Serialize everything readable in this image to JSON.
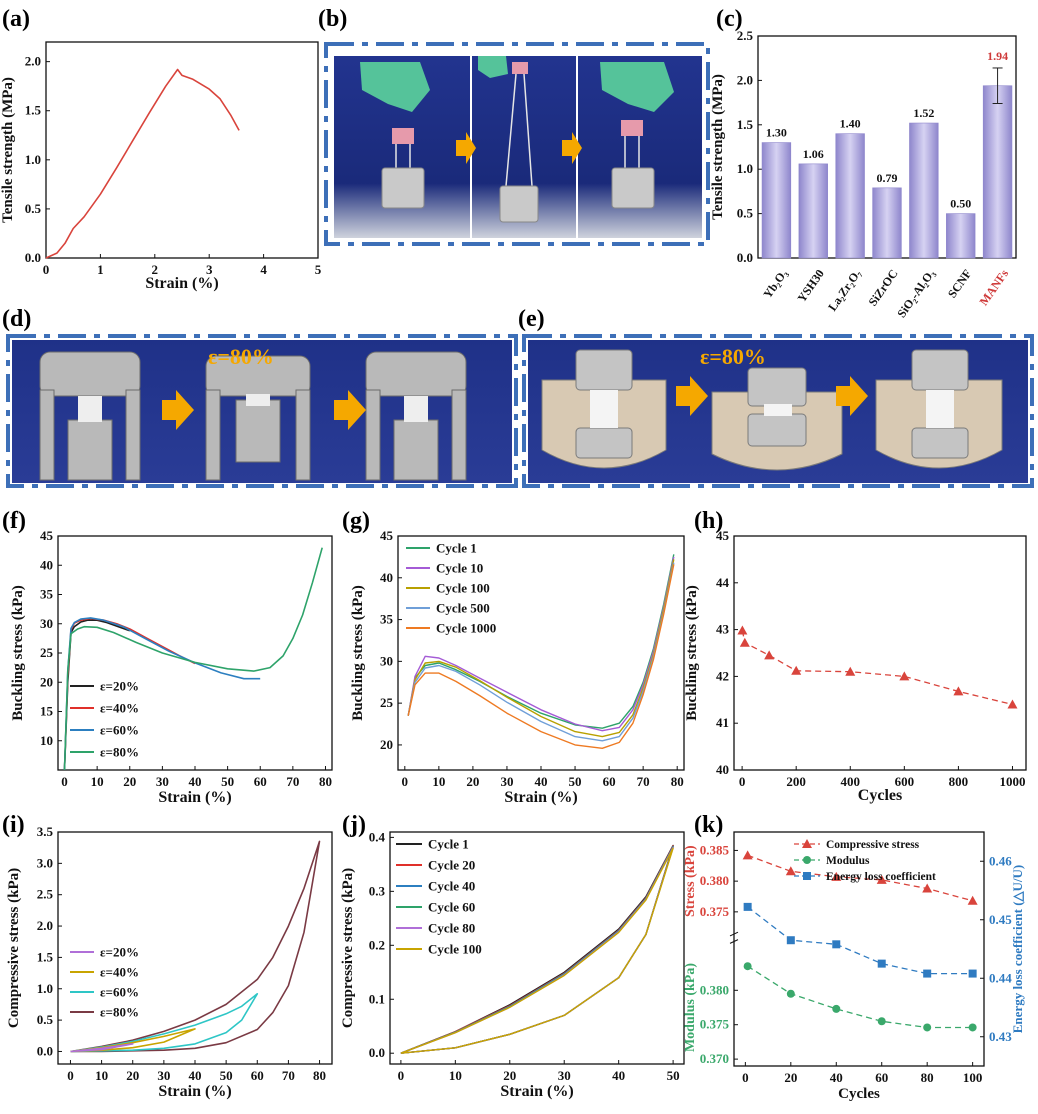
{
  "panel_labels": {
    "a": "(a)",
    "b": "(b)",
    "c": "(c)",
    "d": "(d)",
    "e": "(e)",
    "f": "(f)",
    "g": "(g)",
    "h": "(h)",
    "i": "(i)",
    "j": "(j)",
    "k": "(k)"
  },
  "photo_text": {
    "d_strain": "ε=80%",
    "e_strain": "ε=80%"
  },
  "colors": {
    "frame": "#3d6fb8",
    "arrow": "#f5a800",
    "photo_bg": "#1c2f8a",
    "bar": "#a9a2d8",
    "red": "#d9443c",
    "green": "#3aa86b",
    "blue": "#2f7bc1",
    "accent_red": "#cf3a3a"
  },
  "chart_data": [
    {
      "id": "a",
      "type": "line",
      "xlabel": "Strain (%)",
      "ylabel": "Tensile strength (MPa)",
      "xlim": [
        0,
        5
      ],
      "ylim": [
        0,
        2.2
      ],
      "xticks": [
        0,
        1,
        2,
        3,
        4,
        5
      ],
      "yticks": [
        0.0,
        0.5,
        1.0,
        1.5,
        2.0
      ],
      "ytick_labels": [
        "0.0",
        "0.5",
        "1.0",
        "1.5",
        "2.0"
      ],
      "series": [
        {
          "color": "#d9443c",
          "x": [
            0,
            0.2,
            0.35,
            0.5,
            0.7,
            1.0,
            1.3,
            1.6,
            1.9,
            2.2,
            2.42,
            2.5,
            2.7,
            3.0,
            3.2,
            3.4,
            3.55
          ],
          "y": [
            0,
            0.05,
            0.15,
            0.3,
            0.42,
            0.65,
            0.92,
            1.2,
            1.48,
            1.75,
            1.92,
            1.86,
            1.82,
            1.72,
            1.62,
            1.45,
            1.3
          ]
        }
      ]
    },
    {
      "id": "c",
      "type": "bar",
      "ylabel": "Tensile strength (MPa)",
      "ylim": [
        0,
        2.5
      ],
      "yticks": [
        0.0,
        0.5,
        1.0,
        1.5,
        2.0,
        2.5
      ],
      "ytick_labels": [
        "0.0",
        "0.5",
        "1.0",
        "1.5",
        "2.0",
        "2.5"
      ],
      "categories": [
        "Yb₂O₃",
        "YSH30",
        "La₂Zr₂O₇",
        "SiZrOC",
        "SiO₂-Al₂O₃",
        "SCNF",
        "MANFs"
      ],
      "values": [
        1.3,
        1.06,
        1.4,
        0.79,
        1.52,
        0.5,
        1.94
      ],
      "value_labels": [
        "1.30",
        "1.06",
        "1.40",
        "0.79",
        "1.52",
        "0.50",
        "1.94"
      ],
      "error_bar": {
        "index": 6,
        "err": 0.2
      },
      "highlight_index": 6
    },
    {
      "id": "f",
      "type": "line",
      "xlabel": "Strain (%)",
      "ylabel": "Buckling stress (kPa)",
      "xlim": [
        -2,
        82
      ],
      "ylim": [
        5,
        45
      ],
      "xticks": [
        0,
        10,
        20,
        30,
        40,
        50,
        60,
        70,
        80
      ],
      "yticks": [
        10,
        15,
        20,
        25,
        30,
        35,
        40,
        45
      ],
      "legend_position": "lower-left",
      "series": [
        {
          "name": "ε=20%",
          "color": "#222222",
          "x": [
            0,
            1,
            2,
            3,
            5,
            7,
            10,
            13,
            16,
            19,
            20
          ],
          "y": [
            5,
            20,
            28.5,
            29.5,
            30.3,
            30.6,
            30.6,
            30.2,
            29.6,
            29.0,
            28.8
          ]
        },
        {
          "name": "ε=40%",
          "color": "#e0302a",
          "x": [
            0,
            1,
            2,
            3,
            5,
            8,
            12,
            16,
            20,
            25,
            30,
            35,
            40
          ],
          "y": [
            5,
            21,
            29,
            30.1,
            30.6,
            30.9,
            30.6,
            30.0,
            29.1,
            27.6,
            26.1,
            24.6,
            23.2
          ]
        },
        {
          "name": "ε=60%",
          "color": "#2c7fc0",
          "x": [
            0,
            1,
            2,
            3,
            5,
            8,
            12,
            18,
            25,
            32,
            40,
            48,
            55,
            60
          ],
          "y": [
            5,
            22,
            29.2,
            30.2,
            30.8,
            31.0,
            30.6,
            29.5,
            27.4,
            25.3,
            23.3,
            21.6,
            20.6,
            20.6
          ]
        },
        {
          "name": "ε=80%",
          "color": "#2ea36a",
          "x": [
            0,
            1,
            2,
            4,
            6,
            10,
            15,
            22,
            30,
            40,
            50,
            58,
            63,
            67,
            70,
            73,
            76,
            79
          ],
          "y": [
            5,
            22,
            28.3,
            29.1,
            29.5,
            29.4,
            28.5,
            26.8,
            25.0,
            23.4,
            22.3,
            21.9,
            22.5,
            24.5,
            27.5,
            31.5,
            37,
            43
          ]
        }
      ]
    },
    {
      "id": "g",
      "type": "line",
      "xlabel": "Strain (%)",
      "ylabel": "Buckling stress (kPa)",
      "xlim": [
        -2,
        82
      ],
      "ylim": [
        17,
        45
      ],
      "xticks": [
        0,
        10,
        20,
        30,
        40,
        50,
        60,
        70,
        80
      ],
      "yticks": [
        20,
        25,
        30,
        35,
        40,
        45
      ],
      "legend_position": "top-left",
      "series": [
        {
          "name": "Cycle 1",
          "color": "#2ea36a",
          "x": [
            1,
            3,
            6,
            10,
            15,
            22,
            30,
            40,
            50,
            58,
            63,
            67,
            70,
            73,
            76,
            79
          ],
          "y": [
            23.5,
            28,
            29.5,
            29.8,
            29,
            27.6,
            25.8,
            23.8,
            22.4,
            22,
            22.6,
            24.6,
            27.5,
            31.5,
            36.8,
            42.8
          ]
        },
        {
          "name": "Cycle 10",
          "color": "#a45bd6",
          "x": [
            1,
            3,
            6,
            10,
            15,
            22,
            30,
            40,
            50,
            58,
            63,
            67,
            70,
            73,
            76,
            79
          ],
          "y": [
            23.5,
            28.2,
            30.6,
            30.4,
            29.5,
            28,
            26.3,
            24.2,
            22.5,
            21.7,
            22.1,
            24.2,
            27.2,
            31.2,
            36.5,
            42.5
          ]
        },
        {
          "name": "Cycle 100",
          "color": "#b8a000",
          "x": [
            1,
            3,
            6,
            10,
            15,
            22,
            30,
            40,
            50,
            58,
            63,
            67,
            70,
            73,
            76,
            79
          ],
          "y": [
            23.5,
            27.8,
            29.8,
            30,
            29.3,
            27.7,
            25.7,
            23.4,
            21.6,
            21.0,
            21.5,
            23.6,
            26.8,
            30.8,
            36.2,
            42.2
          ]
        },
        {
          "name": "Cycle 500",
          "color": "#6f9fd8",
          "x": [
            1,
            3,
            6,
            10,
            15,
            22,
            30,
            40,
            50,
            58,
            63,
            67,
            70,
            73,
            76,
            79
          ],
          "y": [
            23.5,
            27.5,
            29.2,
            29.5,
            28.8,
            27.2,
            25.1,
            22.8,
            21.0,
            20.5,
            21.0,
            23.2,
            26.4,
            30.5,
            35.8,
            41.8
          ]
        },
        {
          "name": "Cycle 1000",
          "color": "#ee7a22",
          "x": [
            1,
            3,
            6,
            10,
            15,
            22,
            30,
            40,
            50,
            58,
            63,
            67,
            70,
            73,
            76,
            79
          ],
          "y": [
            23.5,
            27.2,
            28.6,
            28.6,
            27.6,
            25.9,
            23.8,
            21.6,
            20.0,
            19.6,
            20.3,
            22.6,
            26.0,
            30.2,
            35.6,
            41.6
          ]
        }
      ]
    },
    {
      "id": "h",
      "type": "line",
      "xlabel": "Cycles",
      "ylabel": "Buckling stress (kPa)",
      "xlim": [
        -30,
        1050
      ],
      "ylim": [
        40,
        45
      ],
      "xticks": [
        0,
        200,
        400,
        600,
        800,
        1000
      ],
      "yticks": [
        40,
        41,
        42,
        43,
        44,
        45
      ],
      "series": [
        {
          "color": "#d9443c",
          "x": [
            1,
            10,
            100,
            200,
            400,
            600,
            800,
            1000
          ],
          "y": [
            42.98,
            42.72,
            42.45,
            42.12,
            42.1,
            42.0,
            41.68,
            41.4
          ]
        }
      ]
    },
    {
      "id": "i",
      "type": "line",
      "xlabel": "Strain (%)",
      "ylabel": "Compressive stress (kPa)",
      "xlim": [
        -4,
        84
      ],
      "ylim": [
        -0.2,
        3.5
      ],
      "xticks": [
        0,
        10,
        20,
        30,
        40,
        50,
        60,
        70,
        80
      ],
      "yticks": [
        0.0,
        0.5,
        1.0,
        1.5,
        2.0,
        2.5,
        3.0,
        3.5
      ],
      "ytick_labels": [
        "0.0",
        "0.5",
        "1.0",
        "1.5",
        "2.0",
        "2.5",
        "3.0",
        "3.5"
      ],
      "legend_position": "lower-left",
      "series": [
        {
          "name": "ε=20%",
          "color": "#b06fd8",
          "x": [
            0,
            10,
            20,
            20,
            10,
            0
          ],
          "y": [
            0,
            0.05,
            0.12,
            0.12,
            0.03,
            0
          ]
        },
        {
          "name": "ε=40%",
          "color": "#c8a400",
          "x": [
            0,
            10,
            20,
            30,
            40,
            40,
            30,
            20,
            10,
            0
          ],
          "y": [
            0,
            0.06,
            0.14,
            0.24,
            0.36,
            0.36,
            0.15,
            0.06,
            0.02,
            0
          ]
        },
        {
          "name": "ε=60%",
          "color": "#2ec6c6",
          "x": [
            0,
            10,
            20,
            30,
            40,
            50,
            55,
            60,
            60,
            55,
            50,
            40,
            30,
            20,
            10,
            0
          ],
          "y": [
            0,
            0.07,
            0.16,
            0.28,
            0.42,
            0.6,
            0.72,
            0.92,
            0.92,
            0.5,
            0.3,
            0.12,
            0.05,
            0.02,
            0.01,
            0
          ]
        },
        {
          "name": "ε=80%",
          "color": "#7a3a44",
          "x": [
            0,
            10,
            20,
            30,
            40,
            50,
            60,
            65,
            70,
            75,
            80,
            80,
            75,
            70,
            65,
            60,
            50,
            40,
            30,
            20,
            10,
            0
          ],
          "y": [
            0,
            0.08,
            0.18,
            0.32,
            0.5,
            0.75,
            1.15,
            1.5,
            2.0,
            2.6,
            3.35,
            3.35,
            1.9,
            1.05,
            0.62,
            0.35,
            0.14,
            0.05,
            0.02,
            0.01,
            0,
            0
          ]
        }
      ]
    },
    {
      "id": "j",
      "type": "line",
      "xlabel": "Strain (%)",
      "ylabel": "Compressive stress (kPa)",
      "xlim": [
        -2,
        52
      ],
      "ylim": [
        -0.02,
        0.41
      ],
      "xticks": [
        0,
        10,
        20,
        30,
        40,
        50
      ],
      "yticks": [
        0.0,
        0.1,
        0.2,
        0.3,
        0.4
      ],
      "ytick_labels": [
        "0.0",
        "0.1",
        "0.2",
        "0.3",
        "0.4"
      ],
      "legend_position": "top-left",
      "series": [
        {
          "name": "Cycle 1",
          "color": "#222222",
          "x": [
            0,
            10,
            20,
            30,
            40,
            45,
            50,
            50,
            45,
            40,
            30,
            20,
            10,
            0
          ],
          "y": [
            0,
            0.04,
            0.09,
            0.15,
            0.23,
            0.29,
            0.385,
            0.385,
            0.22,
            0.14,
            0.07,
            0.035,
            0.01,
            0
          ]
        },
        {
          "name": "Cycle 20",
          "color": "#e0302a",
          "x": [
            0,
            10,
            20,
            30,
            40,
            45,
            50,
            50,
            45,
            40,
            30,
            20,
            10,
            0
          ],
          "y": [
            0,
            0.04,
            0.088,
            0.148,
            0.228,
            0.288,
            0.384,
            0.384,
            0.22,
            0.14,
            0.07,
            0.035,
            0.01,
            0
          ]
        },
        {
          "name": "Cycle 40",
          "color": "#2c7fc0",
          "x": [
            0,
            10,
            20,
            30,
            40,
            45,
            50,
            50,
            45,
            40,
            30,
            20,
            10,
            0
          ],
          "y": [
            0,
            0.039,
            0.087,
            0.147,
            0.227,
            0.287,
            0.383,
            0.383,
            0.22,
            0.14,
            0.07,
            0.035,
            0.01,
            0
          ]
        },
        {
          "name": "Cycle 60",
          "color": "#2ea36a",
          "x": [
            0,
            10,
            20,
            30,
            40,
            45,
            50,
            50,
            45,
            40,
            30,
            20,
            10,
            0
          ],
          "y": [
            0,
            0.039,
            0.086,
            0.146,
            0.226,
            0.286,
            0.382,
            0.382,
            0.22,
            0.14,
            0.07,
            0.035,
            0.01,
            0
          ]
        },
        {
          "name": "Cycle 80",
          "color": "#b06fd8",
          "x": [
            0,
            10,
            20,
            30,
            40,
            45,
            50,
            50,
            45,
            40,
            30,
            20,
            10,
            0
          ],
          "y": [
            0,
            0.038,
            0.085,
            0.145,
            0.225,
            0.285,
            0.381,
            0.381,
            0.22,
            0.14,
            0.07,
            0.035,
            0.01,
            0
          ]
        },
        {
          "name": "Cycle 100",
          "color": "#c8a400",
          "x": [
            0,
            10,
            20,
            30,
            40,
            45,
            50,
            50,
            45,
            40,
            30,
            20,
            10,
            0
          ],
          "y": [
            0,
            0.038,
            0.085,
            0.144,
            0.224,
            0.284,
            0.38,
            0.38,
            0.22,
            0.14,
            0.07,
            0.035,
            0.01,
            0
          ]
        }
      ]
    },
    {
      "id": "k",
      "type": "line",
      "xlabel": "Cycles",
      "ylabel_top_left": "Stress (kPa)",
      "ylabel_bottom_left": "Modulus (kPa)",
      "ylabel_right": "Energy loss coefficient (△U/U)",
      "xlim": [
        -5,
        105
      ],
      "xticks": [
        0,
        20,
        40,
        60,
        80,
        100
      ],
      "top_ylim": [
        0.372,
        0.388
      ],
      "top_yticks": [
        0.375,
        0.38,
        0.385
      ],
      "top_ytick_labels": [
        "0.375",
        "0.380",
        "0.385"
      ],
      "bottom_ylim": [
        0.369,
        0.386
      ],
      "bottom_yticks": [
        0.37,
        0.375,
        0.38
      ],
      "bottom_ytick_labels": [
        "0.370",
        "0.375",
        "0.380"
      ],
      "right_ylim": [
        0.425,
        0.465
      ],
      "right_yticks": [
        0.43,
        0.44,
        0.45,
        0.46
      ],
      "right_ytick_labels": [
        "0.43",
        "0.44",
        "0.45",
        "0.46"
      ],
      "legend_position": "top-right",
      "series": [
        {
          "name": "Compressive stress",
          "color": "#d9443c",
          "marker": "triangle",
          "axis": "top",
          "x": [
            1,
            20,
            40,
            60,
            80,
            100
          ],
          "y": [
            0.3842,
            0.3816,
            0.3807,
            0.3802,
            0.3788,
            0.3768
          ]
        },
        {
          "name": "Modulus",
          "color": "#3aa86b",
          "marker": "circle",
          "axis": "bottom",
          "x": [
            1,
            20,
            40,
            60,
            80,
            100
          ],
          "y": [
            0.3835,
            0.3795,
            0.3773,
            0.3755,
            0.3746,
            0.3746
          ]
        },
        {
          "name": "Energy loss coefficient",
          "color": "#2f7bc1",
          "marker": "square",
          "axis": "right",
          "x": [
            1,
            20,
            40,
            60,
            80,
            100
          ],
          "y": [
            0.4522,
            0.4465,
            0.4458,
            0.4425,
            0.4408,
            0.4408
          ]
        }
      ]
    }
  ]
}
